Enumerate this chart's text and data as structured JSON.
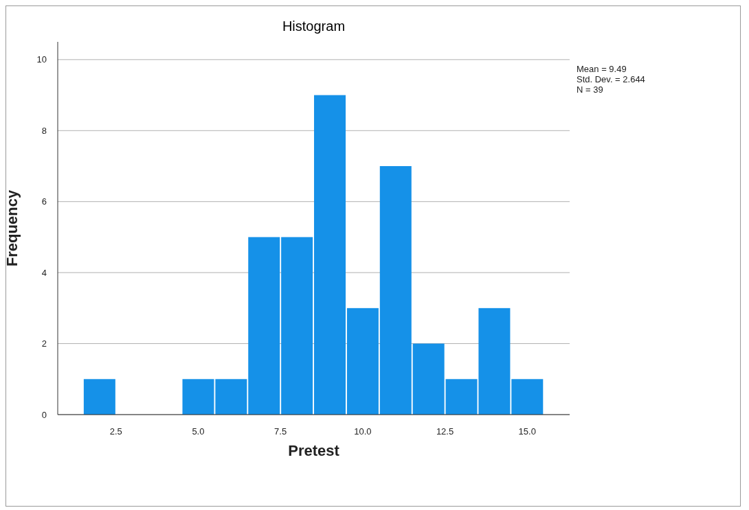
{
  "chart_data": {
    "type": "histogram",
    "title": "Histogram",
    "xlabel": "Pretest",
    "ylabel": "Frequency",
    "bins": [
      1.5,
      2.5,
      3.5,
      4.5,
      5.5,
      6.5,
      7.5,
      8.5,
      9.5,
      10.5,
      11.5,
      12.5,
      13.5,
      14.5,
      15.5
    ],
    "values": [
      1,
      0,
      0,
      1,
      1,
      5,
      5,
      9,
      3,
      7,
      2,
      1,
      3,
      1
    ],
    "color": "#1591e8",
    "xlim": [
      0.73,
      16.29
    ],
    "xticks": [
      {
        "value": 2.5,
        "label": "2.5"
      },
      {
        "value": 5,
        "label": "5.0"
      },
      {
        "value": 7.5,
        "label": "7.5"
      },
      {
        "value": 10,
        "label": "10.0"
      },
      {
        "value": 12.5,
        "label": "12.5"
      },
      {
        "value": 15,
        "label": "15.0"
      }
    ],
    "ylim": [
      0,
      10.5
    ],
    "yticks": [
      0,
      2,
      4,
      6,
      8,
      10
    ],
    "grid": "y",
    "annotations": [
      "Mean = 9.49",
      "Std. Dev. = 2.644",
      "N = 39"
    ]
  }
}
